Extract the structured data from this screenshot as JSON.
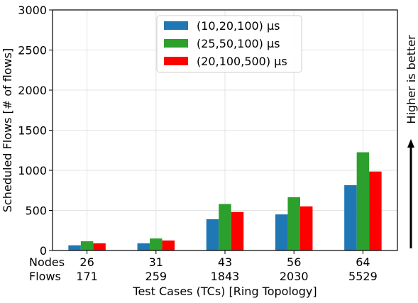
{
  "chart_data": {
    "type": "bar",
    "title": "",
    "xlabel": "Test Cases (TCs) [Ring Topology]",
    "ylabel": "Scheduled Flows [# of flows]",
    "ylim": [
      0,
      3000
    ],
    "yticks": [
      0,
      500,
      1000,
      1500,
      2000,
      2500,
      3000
    ],
    "grid": true,
    "legend_position": "top-center",
    "row_labels": {
      "nodes": "Nodes",
      "flows": "Flows"
    },
    "categories": [
      {
        "nodes": "26",
        "flows": "171"
      },
      {
        "nodes": "31",
        "flows": "259"
      },
      {
        "nodes": "43",
        "flows": "1843"
      },
      {
        "nodes": "56",
        "flows": "2030"
      },
      {
        "nodes": "64",
        "flows": "5529"
      }
    ],
    "series": [
      {
        "name": "(10,20,100) μs",
        "color": "#1f77b4",
        "values": [
          65,
          90,
          390,
          450,
          815
        ]
      },
      {
        "name": "(25,50,100) μs",
        "color": "#2ca02c",
        "values": [
          115,
          150,
          580,
          665,
          1225
        ]
      },
      {
        "name": "(20,100,500) μs",
        "color": "#ff0000",
        "values": [
          90,
          125,
          480,
          550,
          985
        ]
      }
    ],
    "annotation": "Higher is better"
  }
}
